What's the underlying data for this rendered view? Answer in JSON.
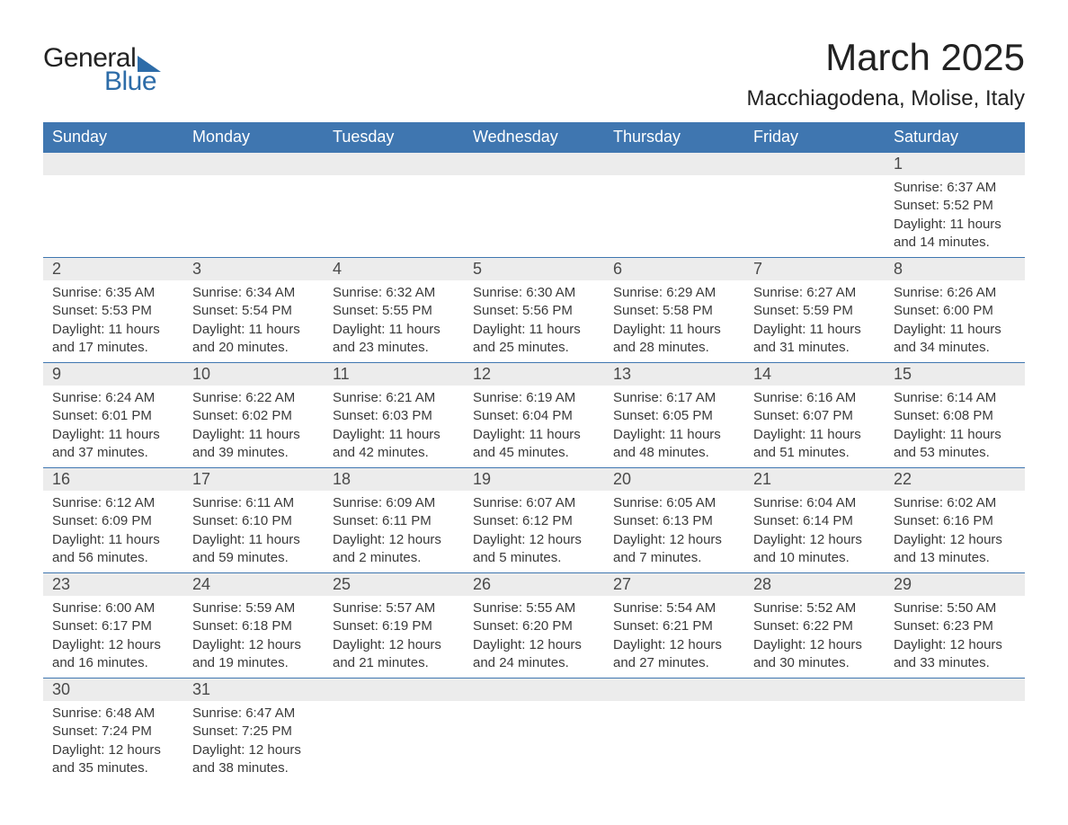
{
  "brand": {
    "text1": "General",
    "text2": "Blue",
    "accent_color": "#2d6ca8"
  },
  "title": "March 2025",
  "location": "Macchiagodena, Molise, Italy",
  "colors": {
    "header_bg": "#3f76b0",
    "header_text": "#ffffff",
    "daynum_bg": "#ececec",
    "body_text": "#3a3a3a",
    "rule": "#3f76b0",
    "page_bg": "#ffffff"
  },
  "day_names": [
    "Sunday",
    "Monday",
    "Tuesday",
    "Wednesday",
    "Thursday",
    "Friday",
    "Saturday"
  ],
  "weeks": [
    [
      null,
      null,
      null,
      null,
      null,
      null,
      {
        "n": "1",
        "sr": "Sunrise: 6:37 AM",
        "ss": "Sunset: 5:52 PM",
        "dl": "Daylight: 11 hours and 14 minutes."
      }
    ],
    [
      {
        "n": "2",
        "sr": "Sunrise: 6:35 AM",
        "ss": "Sunset: 5:53 PM",
        "dl": "Daylight: 11 hours and 17 minutes."
      },
      {
        "n": "3",
        "sr": "Sunrise: 6:34 AM",
        "ss": "Sunset: 5:54 PM",
        "dl": "Daylight: 11 hours and 20 minutes."
      },
      {
        "n": "4",
        "sr": "Sunrise: 6:32 AM",
        "ss": "Sunset: 5:55 PM",
        "dl": "Daylight: 11 hours and 23 minutes."
      },
      {
        "n": "5",
        "sr": "Sunrise: 6:30 AM",
        "ss": "Sunset: 5:56 PM",
        "dl": "Daylight: 11 hours and 25 minutes."
      },
      {
        "n": "6",
        "sr": "Sunrise: 6:29 AM",
        "ss": "Sunset: 5:58 PM",
        "dl": "Daylight: 11 hours and 28 minutes."
      },
      {
        "n": "7",
        "sr": "Sunrise: 6:27 AM",
        "ss": "Sunset: 5:59 PM",
        "dl": "Daylight: 11 hours and 31 minutes."
      },
      {
        "n": "8",
        "sr": "Sunrise: 6:26 AM",
        "ss": "Sunset: 6:00 PM",
        "dl": "Daylight: 11 hours and 34 minutes."
      }
    ],
    [
      {
        "n": "9",
        "sr": "Sunrise: 6:24 AM",
        "ss": "Sunset: 6:01 PM",
        "dl": "Daylight: 11 hours and 37 minutes."
      },
      {
        "n": "10",
        "sr": "Sunrise: 6:22 AM",
        "ss": "Sunset: 6:02 PM",
        "dl": "Daylight: 11 hours and 39 minutes."
      },
      {
        "n": "11",
        "sr": "Sunrise: 6:21 AM",
        "ss": "Sunset: 6:03 PM",
        "dl": "Daylight: 11 hours and 42 minutes."
      },
      {
        "n": "12",
        "sr": "Sunrise: 6:19 AM",
        "ss": "Sunset: 6:04 PM",
        "dl": "Daylight: 11 hours and 45 minutes."
      },
      {
        "n": "13",
        "sr": "Sunrise: 6:17 AM",
        "ss": "Sunset: 6:05 PM",
        "dl": "Daylight: 11 hours and 48 minutes."
      },
      {
        "n": "14",
        "sr": "Sunrise: 6:16 AM",
        "ss": "Sunset: 6:07 PM",
        "dl": "Daylight: 11 hours and 51 minutes."
      },
      {
        "n": "15",
        "sr": "Sunrise: 6:14 AM",
        "ss": "Sunset: 6:08 PM",
        "dl": "Daylight: 11 hours and 53 minutes."
      }
    ],
    [
      {
        "n": "16",
        "sr": "Sunrise: 6:12 AM",
        "ss": "Sunset: 6:09 PM",
        "dl": "Daylight: 11 hours and 56 minutes."
      },
      {
        "n": "17",
        "sr": "Sunrise: 6:11 AM",
        "ss": "Sunset: 6:10 PM",
        "dl": "Daylight: 11 hours and 59 minutes."
      },
      {
        "n": "18",
        "sr": "Sunrise: 6:09 AM",
        "ss": "Sunset: 6:11 PM",
        "dl": "Daylight: 12 hours and 2 minutes."
      },
      {
        "n": "19",
        "sr": "Sunrise: 6:07 AM",
        "ss": "Sunset: 6:12 PM",
        "dl": "Daylight: 12 hours and 5 minutes."
      },
      {
        "n": "20",
        "sr": "Sunrise: 6:05 AM",
        "ss": "Sunset: 6:13 PM",
        "dl": "Daylight: 12 hours and 7 minutes."
      },
      {
        "n": "21",
        "sr": "Sunrise: 6:04 AM",
        "ss": "Sunset: 6:14 PM",
        "dl": "Daylight: 12 hours and 10 minutes."
      },
      {
        "n": "22",
        "sr": "Sunrise: 6:02 AM",
        "ss": "Sunset: 6:16 PM",
        "dl": "Daylight: 12 hours and 13 minutes."
      }
    ],
    [
      {
        "n": "23",
        "sr": "Sunrise: 6:00 AM",
        "ss": "Sunset: 6:17 PM",
        "dl": "Daylight: 12 hours and 16 minutes."
      },
      {
        "n": "24",
        "sr": "Sunrise: 5:59 AM",
        "ss": "Sunset: 6:18 PM",
        "dl": "Daylight: 12 hours and 19 minutes."
      },
      {
        "n": "25",
        "sr": "Sunrise: 5:57 AM",
        "ss": "Sunset: 6:19 PM",
        "dl": "Daylight: 12 hours and 21 minutes."
      },
      {
        "n": "26",
        "sr": "Sunrise: 5:55 AM",
        "ss": "Sunset: 6:20 PM",
        "dl": "Daylight: 12 hours and 24 minutes."
      },
      {
        "n": "27",
        "sr": "Sunrise: 5:54 AM",
        "ss": "Sunset: 6:21 PM",
        "dl": "Daylight: 12 hours and 27 minutes."
      },
      {
        "n": "28",
        "sr": "Sunrise: 5:52 AM",
        "ss": "Sunset: 6:22 PM",
        "dl": "Daylight: 12 hours and 30 minutes."
      },
      {
        "n": "29",
        "sr": "Sunrise: 5:50 AM",
        "ss": "Sunset: 6:23 PM",
        "dl": "Daylight: 12 hours and 33 minutes."
      }
    ],
    [
      {
        "n": "30",
        "sr": "Sunrise: 6:48 AM",
        "ss": "Sunset: 7:24 PM",
        "dl": "Daylight: 12 hours and 35 minutes."
      },
      {
        "n": "31",
        "sr": "Sunrise: 6:47 AM",
        "ss": "Sunset: 7:25 PM",
        "dl": "Daylight: 12 hours and 38 minutes."
      },
      null,
      null,
      null,
      null,
      null
    ]
  ]
}
